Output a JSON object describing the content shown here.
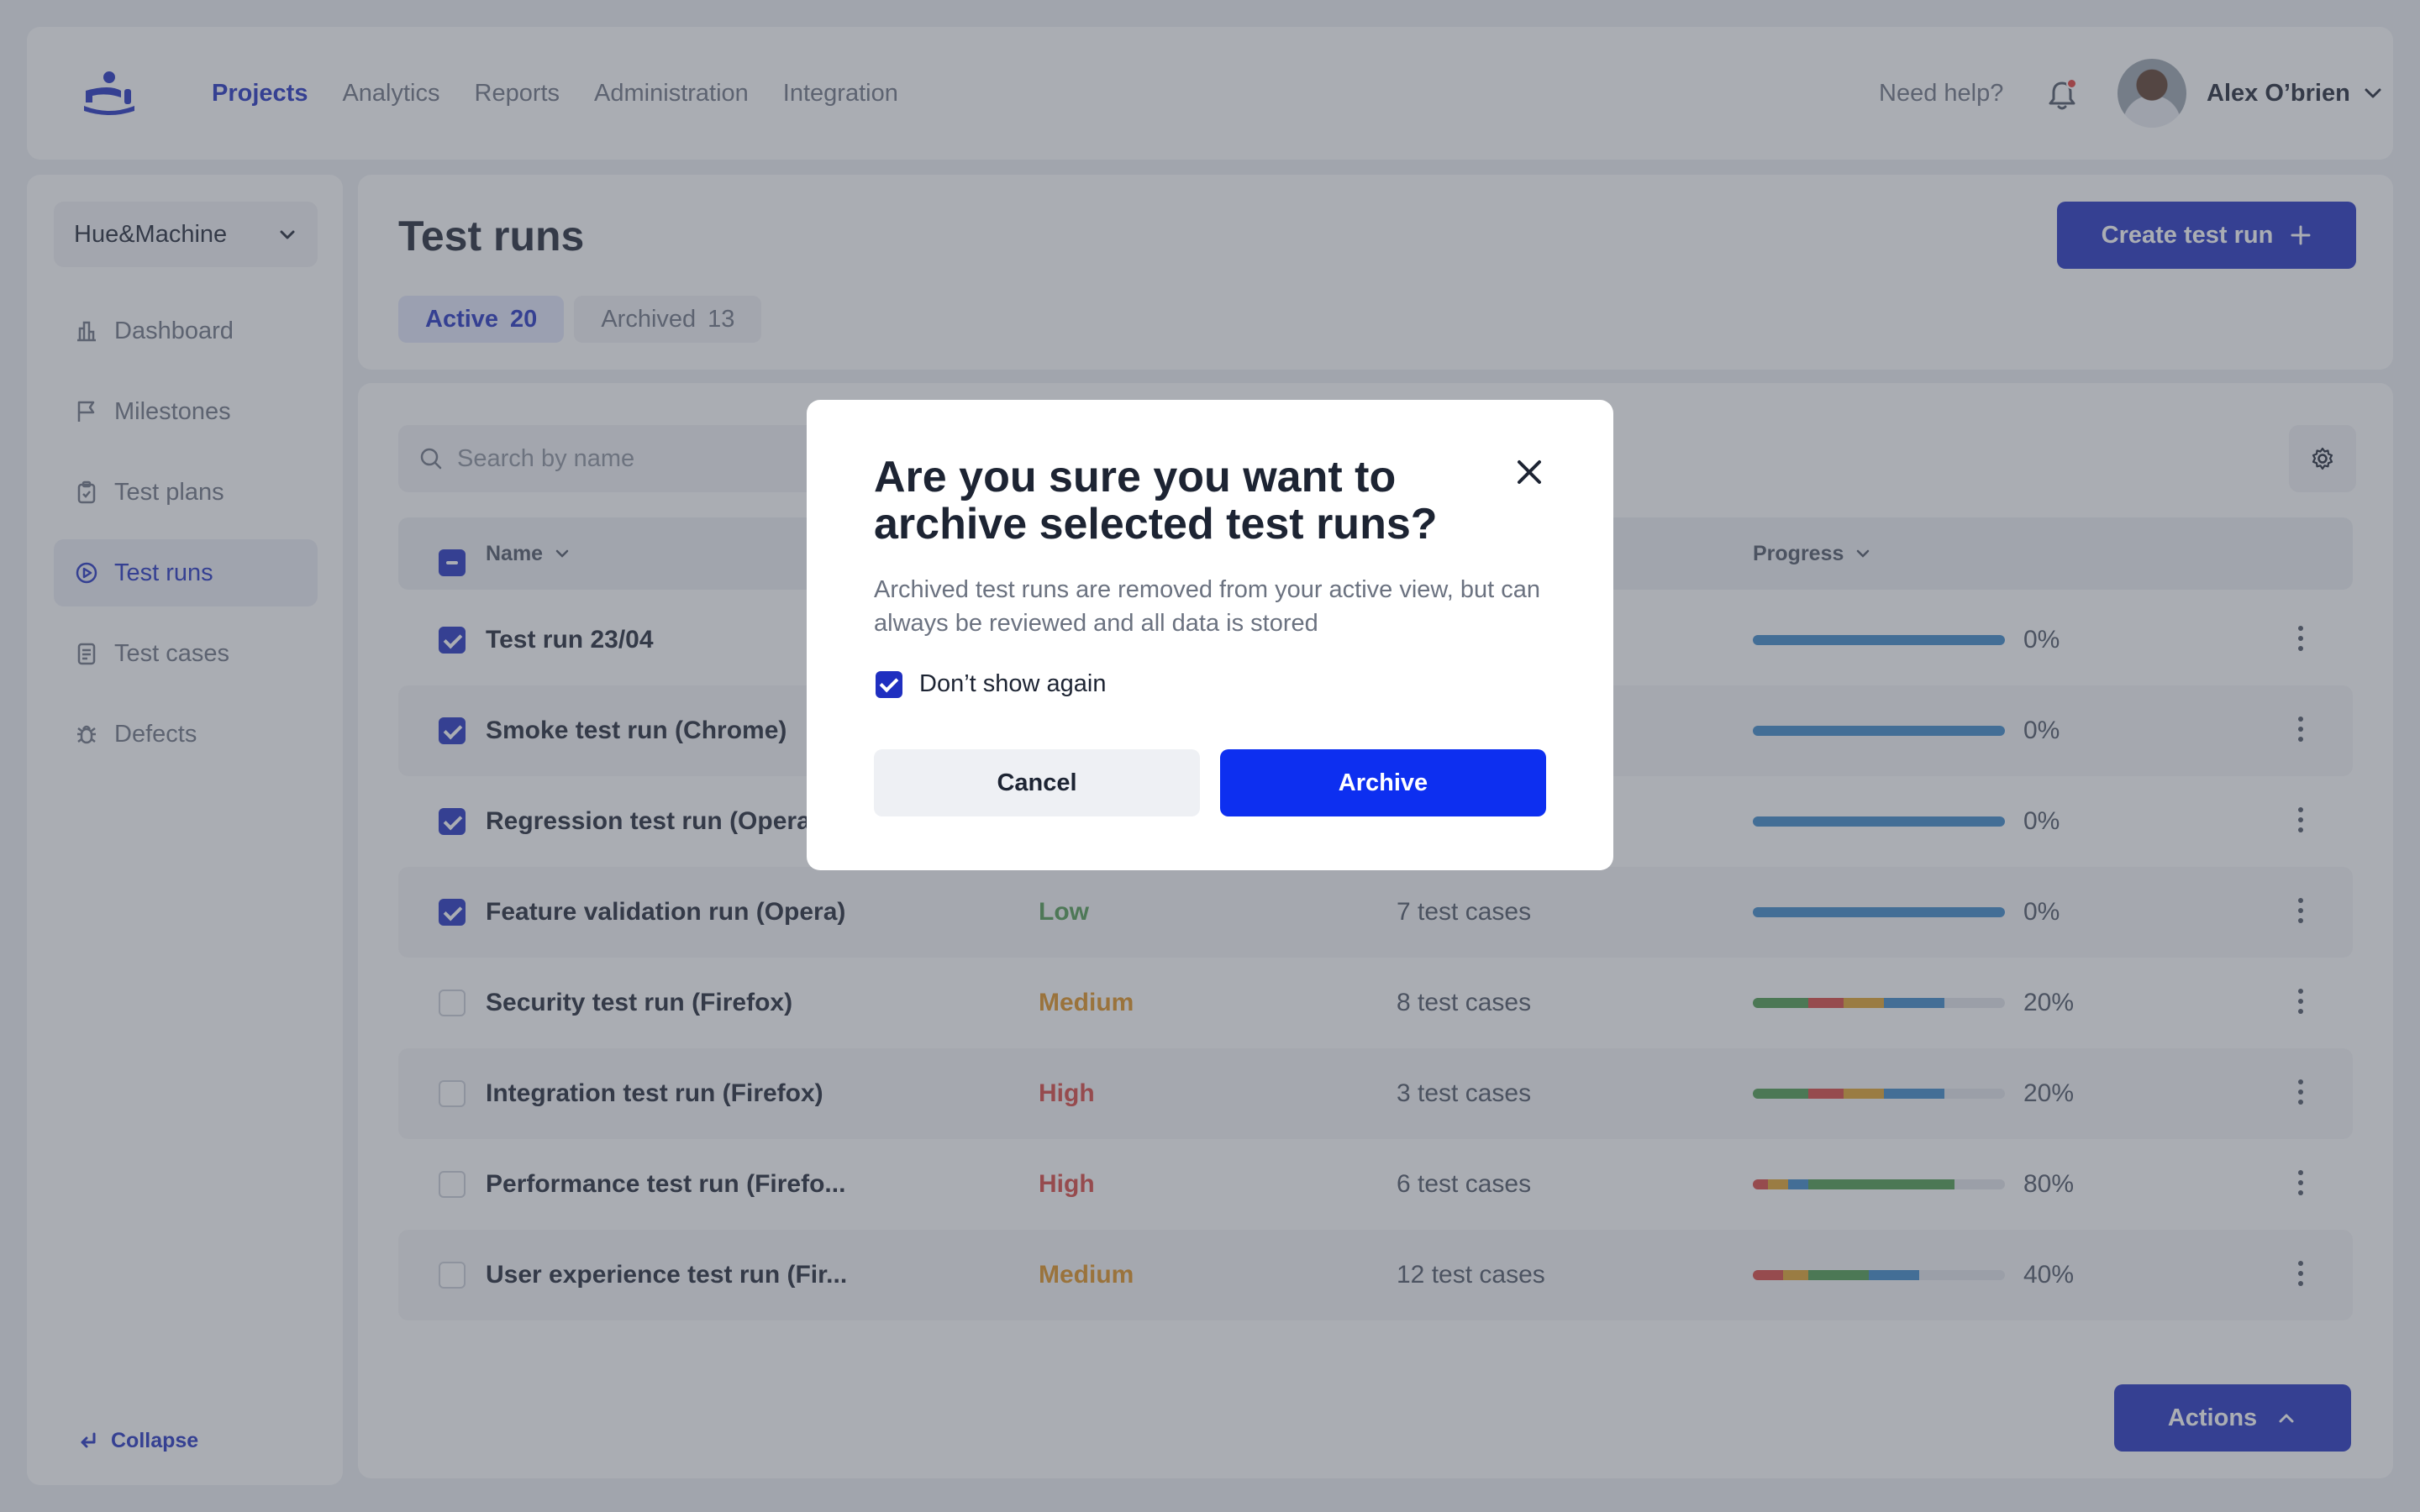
{
  "topbar": {
    "nav": [
      {
        "label": "Projects",
        "active": true
      },
      {
        "label": "Analytics",
        "active": false
      },
      {
        "label": "Reports",
        "active": false
      },
      {
        "label": "Administration",
        "active": false
      },
      {
        "label": "Integration",
        "active": false
      }
    ],
    "help_label": "Need help?",
    "user_name": "Alex O’brien",
    "has_notification": true
  },
  "sidebar": {
    "workspace": "Hue&Machine",
    "items": [
      {
        "label": "Dashboard",
        "icon": "dashboard-icon",
        "active": false
      },
      {
        "label": "Milestones",
        "icon": "flag-icon",
        "active": false
      },
      {
        "label": "Test plans",
        "icon": "clipboard-icon",
        "active": false
      },
      {
        "label": "Test runs",
        "icon": "play-circle-icon",
        "active": true
      },
      {
        "label": "Test cases",
        "icon": "document-icon",
        "active": false
      },
      {
        "label": "Defects",
        "icon": "bug-icon",
        "active": false
      }
    ],
    "collapse_label": "Collapse"
  },
  "header": {
    "title": "Test runs",
    "create_button": "Create test run",
    "tabs": [
      {
        "label": "Active",
        "count": "20",
        "active": true
      },
      {
        "label": "Archived",
        "count": "13",
        "active": false
      }
    ]
  },
  "table": {
    "search_placeholder": "Search by name",
    "columns": {
      "name": "Name",
      "progress": "Progress"
    },
    "rows": [
      {
        "name": "Test run 23/04",
        "priority": "",
        "cases": "",
        "percent": "0%",
        "checked": true,
        "segments": [
          {
            "color": "#3a86c8",
            "value": 100
          }
        ]
      },
      {
        "name": "Smoke test run (Chrome)",
        "priority": "",
        "cases": "",
        "percent": "0%",
        "checked": true,
        "segments": [
          {
            "color": "#3a86c8",
            "value": 100
          }
        ]
      },
      {
        "name": "Regression test run (Opera)",
        "priority": "",
        "cases": "",
        "percent": "0%",
        "checked": true,
        "segments": [
          {
            "color": "#3a86c8",
            "value": 100
          }
        ]
      },
      {
        "name": "Feature validation run (Opera)",
        "priority": "Low",
        "priority_color": "#4f9a4f",
        "cases": "7 test cases",
        "percent": "0%",
        "checked": true,
        "segments": [
          {
            "color": "#3a86c8",
            "value": 100
          }
        ]
      },
      {
        "name": "Security test run (Firefox)",
        "priority": "Medium",
        "priority_color": "#e0911c",
        "cases": "8 test cases",
        "percent": "20%",
        "checked": false,
        "segments": [
          {
            "color": "#4c9a4c",
            "value": 22
          },
          {
            "color": "#d9443f",
            "value": 14
          },
          {
            "color": "#e0a12a",
            "value": 16
          },
          {
            "color": "#3a86c8",
            "value": 24
          }
        ]
      },
      {
        "name": "Integration test run (Firefox)",
        "priority": "High",
        "priority_color": "#d9443f",
        "cases": "3 test cases",
        "percent": "20%",
        "checked": false,
        "segments": [
          {
            "color": "#4c9a4c",
            "value": 22
          },
          {
            "color": "#d9443f",
            "value": 14
          },
          {
            "color": "#e0a12a",
            "value": 16
          },
          {
            "color": "#3a86c8",
            "value": 24
          }
        ]
      },
      {
        "name": "Performance test run (Firefo...",
        "priority": "High",
        "priority_color": "#d9443f",
        "cases": "6 test cases",
        "percent": "80%",
        "checked": false,
        "segments": [
          {
            "color": "#d9443f",
            "value": 6
          },
          {
            "color": "#e0a12a",
            "value": 8
          },
          {
            "color": "#3a86c8",
            "value": 8
          },
          {
            "color": "#4c9a4c",
            "value": 58
          }
        ]
      },
      {
        "name": "User experience test run (Fir...",
        "priority": "Medium",
        "priority_color": "#e0911c",
        "cases": "12 test cases",
        "percent": "40%",
        "checked": false,
        "segments": [
          {
            "color": "#d9443f",
            "value": 12
          },
          {
            "color": "#e0a12a",
            "value": 10
          },
          {
            "color": "#4c9a4c",
            "value": 24
          },
          {
            "color": "#3a86c8",
            "value": 20
          }
        ]
      }
    ],
    "actions_button": "Actions"
  },
  "modal": {
    "title": "Are you sure you want to archive selected test runs?",
    "text": "Archived test runs are removed from your active view, but can always be reviewed and all data is stored",
    "checkbox_label": "Don’t show again",
    "checkbox_checked": true,
    "cancel_label": "Cancel",
    "confirm_label": "Archive"
  },
  "colors": {
    "accent": "#1f2fc0",
    "confirm": "#0d2ff0",
    "overlay": "#4e5460"
  }
}
